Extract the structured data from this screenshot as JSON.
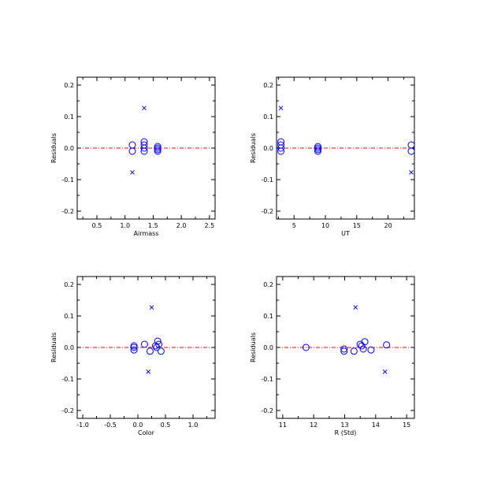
{
  "colors": {
    "points": "#0000ff",
    "zero_line": "#ff0000",
    "axes": "#000000"
  },
  "chart_data": [
    {
      "type": "scatter",
      "xlabel": "Airmass",
      "ylabel": "Residuals",
      "xlim": [
        0.15,
        2.6
      ],
      "ylim": [
        -0.225,
        0.225
      ],
      "xticks": [
        0.5,
        1.0,
        1.5,
        2.0,
        2.5
      ],
      "xtick_labels": [
        "0.5",
        "1.0",
        "1.5",
        "2.0",
        "2.5"
      ],
      "yticks": [
        -0.2,
        -0.1,
        0.0,
        0.1,
        0.2
      ],
      "ytick_labels": [
        "-0.2",
        "-0.1",
        "0.0",
        "0.1",
        "0.2"
      ],
      "zero_line": 0.0,
      "series": [
        {
          "marker": "circle",
          "x": [
            1.13,
            1.13,
            1.34,
            1.34,
            1.34,
            1.34,
            1.58,
            1.58,
            1.58,
            1.58
          ],
          "y": [
            0.01,
            -0.01,
            0.02,
            0.01,
            0.0,
            -0.01,
            0.005,
            0.0,
            -0.005,
            -0.01
          ]
        },
        {
          "marker": "cross",
          "x": [
            1.34,
            1.13
          ],
          "y": [
            0.127,
            -0.077
          ]
        }
      ]
    },
    {
      "type": "scatter",
      "xlabel": "UT",
      "ylabel": "Residuals",
      "xlim": [
        2.2,
        24.2
      ],
      "ylim": [
        -0.225,
        0.225
      ],
      "xticks": [
        5,
        10,
        15,
        20
      ],
      "xtick_labels": [
        "5",
        "10",
        "15",
        "20"
      ],
      "yticks": [
        -0.2,
        -0.1,
        0.0,
        0.1,
        0.2
      ],
      "ytick_labels": [
        "-0.2",
        "-0.1",
        "0.0",
        "0.1",
        "0.2"
      ],
      "zero_line": 0.0,
      "series": [
        {
          "marker": "circle",
          "x": [
            2.9,
            2.9,
            2.9,
            2.9,
            8.8,
            8.8,
            8.8,
            8.8,
            23.7,
            23.7
          ],
          "y": [
            0.02,
            0.01,
            0.0,
            -0.01,
            0.005,
            0.0,
            -0.005,
            -0.01,
            0.01,
            -0.01
          ]
        },
        {
          "marker": "cross",
          "x": [
            2.9,
            23.7
          ],
          "y": [
            0.127,
            -0.077
          ]
        }
      ]
    },
    {
      "type": "scatter",
      "xlabel": "Color",
      "ylabel": "Residuals",
      "xlim": [
        -1.1,
        1.4
      ],
      "ylim": [
        -0.225,
        0.225
      ],
      "xticks": [
        -1.0,
        -0.5,
        0.0,
        0.5,
        1.0
      ],
      "xtick_labels": [
        "-1.0",
        "-0.5",
        "0.0",
        "0.5",
        "1.0"
      ],
      "yticks": [
        -0.2,
        -0.1,
        0.0,
        0.1,
        0.2
      ],
      "ytick_labels": [
        "-0.2",
        "-0.1",
        "0.0",
        "0.1",
        "0.2"
      ],
      "zero_line": 0.0,
      "series": [
        {
          "marker": "circle",
          "x": [
            -0.07,
            -0.07,
            -0.07,
            0.12,
            0.22,
            0.32,
            0.34,
            0.36,
            0.38,
            0.42
          ],
          "y": [
            0.005,
            0.0,
            -0.008,
            0.01,
            -0.012,
            0.005,
            0.0,
            0.02,
            0.01,
            -0.012
          ]
        },
        {
          "marker": "cross",
          "x": [
            0.25,
            0.19
          ],
          "y": [
            0.127,
            -0.077
          ]
        }
      ]
    },
    {
      "type": "scatter",
      "xlabel": "R (Std)",
      "ylabel": "Residuals",
      "xlim": [
        10.8,
        15.25
      ],
      "ylim": [
        -0.225,
        0.225
      ],
      "xticks": [
        11,
        12,
        13,
        14,
        15
      ],
      "xtick_labels": [
        "11",
        "12",
        "13",
        "14",
        "15"
      ],
      "yticks": [
        -0.2,
        -0.1,
        0.0,
        0.1,
        0.2
      ],
      "ytick_labels": [
        "-0.2",
        "-0.1",
        "0.0",
        "0.1",
        "0.2"
      ],
      "zero_line": 0.0,
      "series": [
        {
          "marker": "circle",
          "x": [
            11.75,
            12.98,
            12.98,
            13.3,
            13.5,
            13.55,
            13.6,
            13.65,
            13.85,
            14.35
          ],
          "y": [
            0.0,
            -0.005,
            -0.012,
            -0.012,
            0.01,
            0.005,
            -0.005,
            0.018,
            -0.008,
            0.008
          ]
        },
        {
          "marker": "cross",
          "x": [
            13.35,
            14.3
          ],
          "y": [
            0.127,
            -0.077
          ]
        }
      ]
    }
  ]
}
